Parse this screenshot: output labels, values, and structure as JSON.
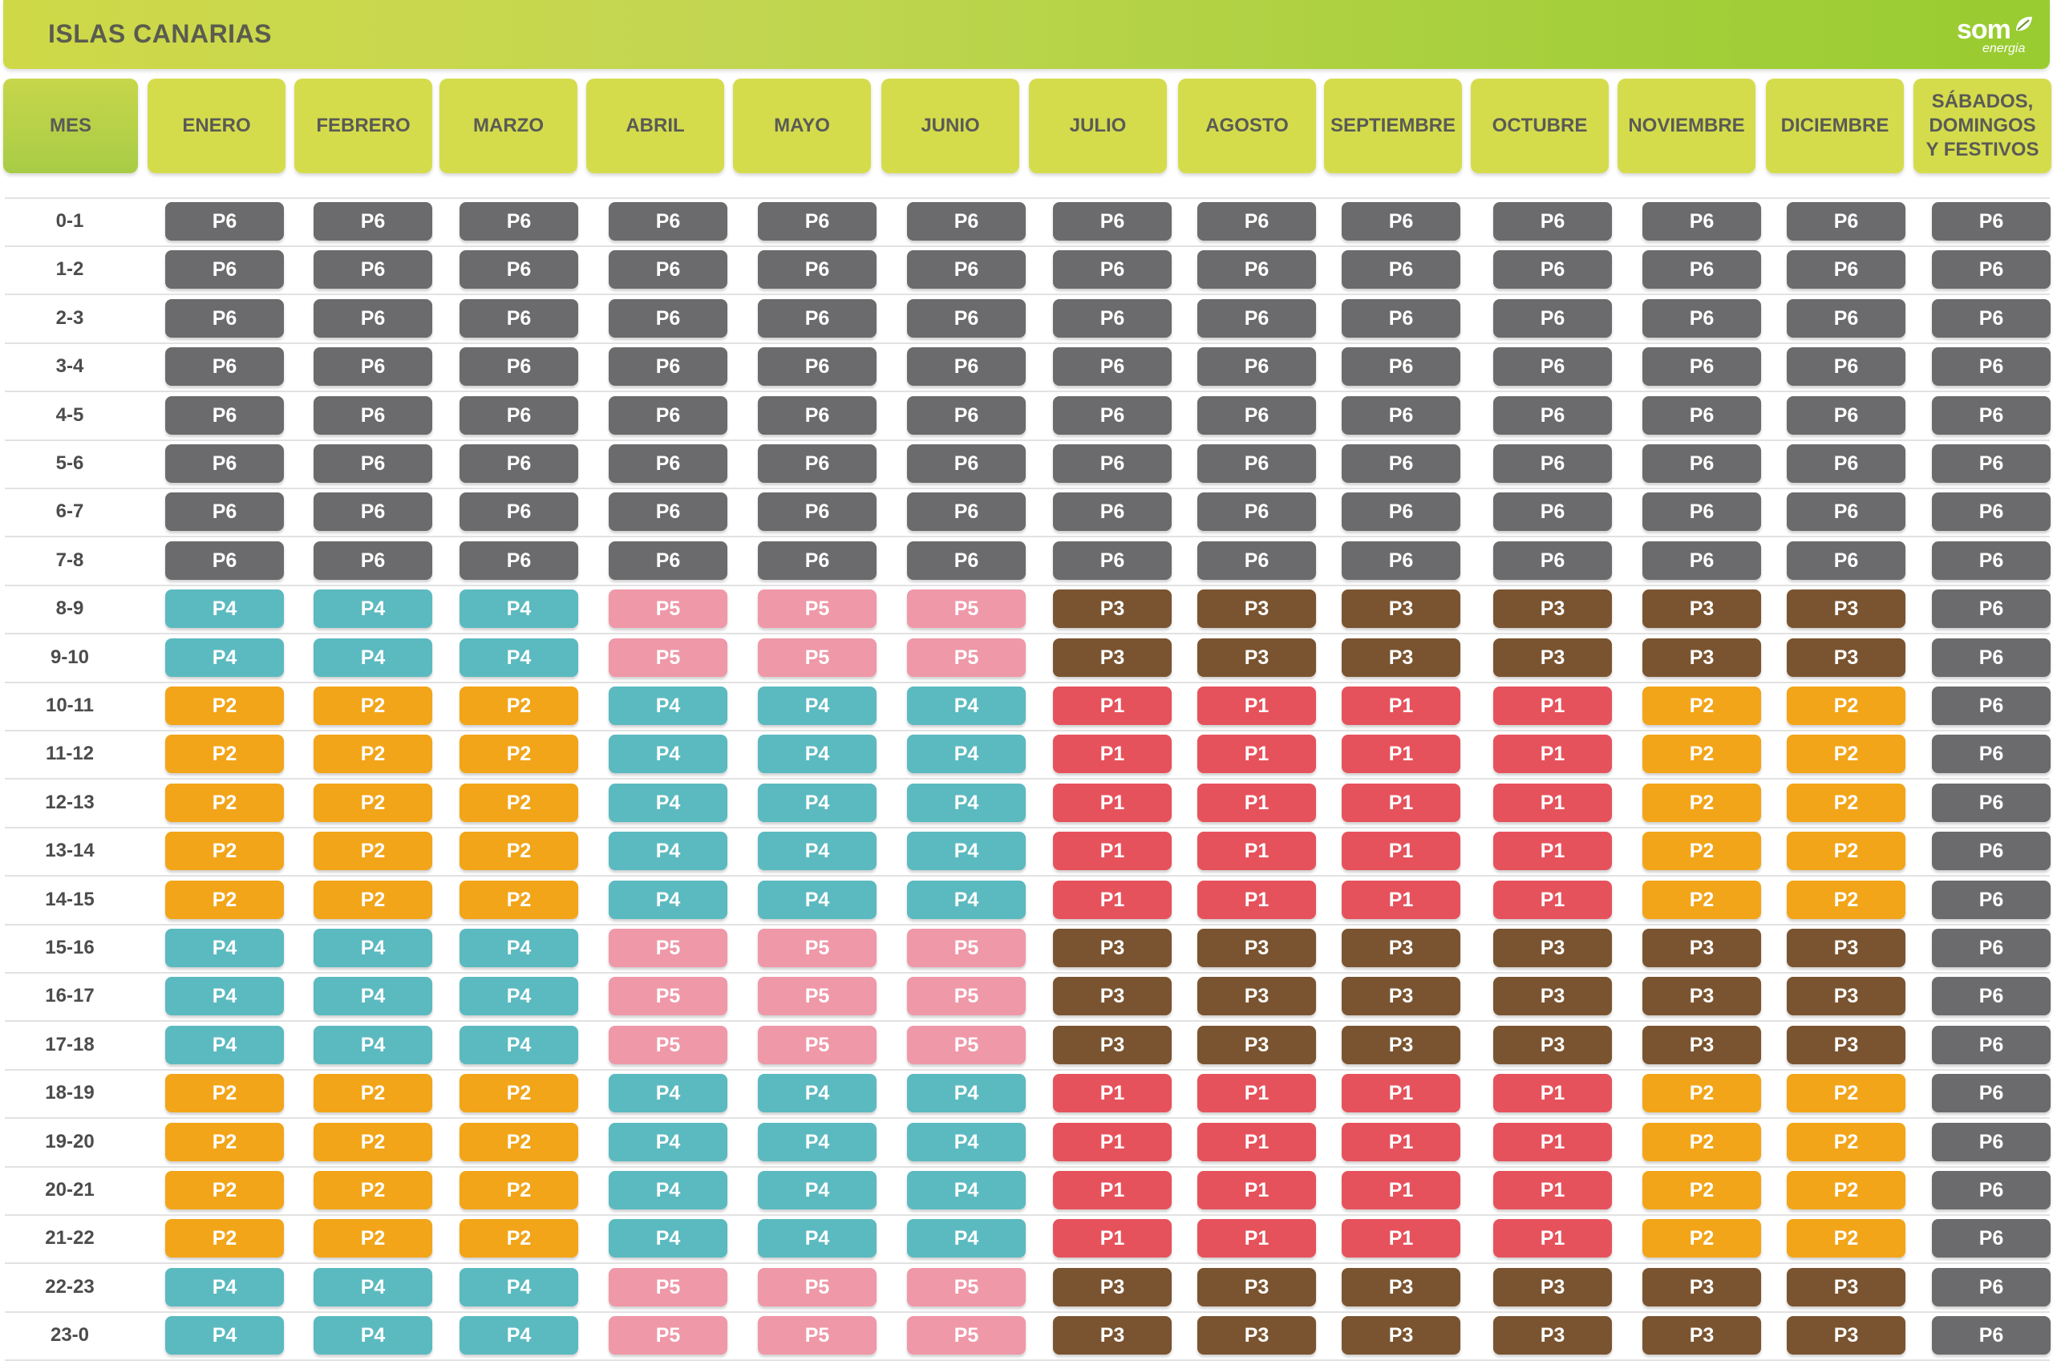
{
  "title": "ISLAS CANARIAS",
  "logo": {
    "word": "som",
    "sub": "energia"
  },
  "header_first": "MES",
  "columns": [
    "ENERO",
    "FEBRERO",
    "MARZO",
    "ABRIL",
    "MAYO",
    "JUNIO",
    "JULIO",
    "AGOSTO",
    "SEPTIEMBRE",
    "OCTUBRE",
    "NOVIEMBRE",
    "DICIEMBRE",
    "SÁBADOS,\nDOMINGOS\nY FESTIVOS"
  ],
  "period_colors": {
    "P1": "#e6525c",
    "P2": "#f2a519",
    "P3": "#7a5430",
    "P4": "#5bbac0",
    "P5": "#ef98a8",
    "P6": "#6b6b6d"
  },
  "rows": [
    {
      "hour": "0-1",
      "periods": [
        "P6",
        "P6",
        "P6",
        "P6",
        "P6",
        "P6",
        "P6",
        "P6",
        "P6",
        "P6",
        "P6",
        "P6",
        "P6"
      ]
    },
    {
      "hour": "1-2",
      "periods": [
        "P6",
        "P6",
        "P6",
        "P6",
        "P6",
        "P6",
        "P6",
        "P6",
        "P6",
        "P6",
        "P6",
        "P6",
        "P6"
      ]
    },
    {
      "hour": "2-3",
      "periods": [
        "P6",
        "P6",
        "P6",
        "P6",
        "P6",
        "P6",
        "P6",
        "P6",
        "P6",
        "P6",
        "P6",
        "P6",
        "P6"
      ]
    },
    {
      "hour": "3-4",
      "periods": [
        "P6",
        "P6",
        "P6",
        "P6",
        "P6",
        "P6",
        "P6",
        "P6",
        "P6",
        "P6",
        "P6",
        "P6",
        "P6"
      ]
    },
    {
      "hour": "4-5",
      "periods": [
        "P6",
        "P6",
        "P6",
        "P6",
        "P6",
        "P6",
        "P6",
        "P6",
        "P6",
        "P6",
        "P6",
        "P6",
        "P6"
      ]
    },
    {
      "hour": "5-6",
      "periods": [
        "P6",
        "P6",
        "P6",
        "P6",
        "P6",
        "P6",
        "P6",
        "P6",
        "P6",
        "P6",
        "P6",
        "P6",
        "P6"
      ]
    },
    {
      "hour": "6-7",
      "periods": [
        "P6",
        "P6",
        "P6",
        "P6",
        "P6",
        "P6",
        "P6",
        "P6",
        "P6",
        "P6",
        "P6",
        "P6",
        "P6"
      ]
    },
    {
      "hour": "7-8",
      "periods": [
        "P6",
        "P6",
        "P6",
        "P6",
        "P6",
        "P6",
        "P6",
        "P6",
        "P6",
        "P6",
        "P6",
        "P6",
        "P6"
      ]
    },
    {
      "hour": "8-9",
      "periods": [
        "P4",
        "P4",
        "P4",
        "P5",
        "P5",
        "P5",
        "P3",
        "P3",
        "P3",
        "P3",
        "P3",
        "P3",
        "P6"
      ]
    },
    {
      "hour": "9-10",
      "periods": [
        "P4",
        "P4",
        "P4",
        "P5",
        "P5",
        "P5",
        "P3",
        "P3",
        "P3",
        "P3",
        "P3",
        "P3",
        "P6"
      ]
    },
    {
      "hour": "10-11",
      "periods": [
        "P2",
        "P2",
        "P2",
        "P4",
        "P4",
        "P4",
        "P1",
        "P1",
        "P1",
        "P1",
        "P2",
        "P2",
        "P6"
      ]
    },
    {
      "hour": "11-12",
      "periods": [
        "P2",
        "P2",
        "P2",
        "P4",
        "P4",
        "P4",
        "P1",
        "P1",
        "P1",
        "P1",
        "P2",
        "P2",
        "P6"
      ]
    },
    {
      "hour": "12-13",
      "periods": [
        "P2",
        "P2",
        "P2",
        "P4",
        "P4",
        "P4",
        "P1",
        "P1",
        "P1",
        "P1",
        "P2",
        "P2",
        "P6"
      ]
    },
    {
      "hour": "13-14",
      "periods": [
        "P2",
        "P2",
        "P2",
        "P4",
        "P4",
        "P4",
        "P1",
        "P1",
        "P1",
        "P1",
        "P2",
        "P2",
        "P6"
      ]
    },
    {
      "hour": "14-15",
      "periods": [
        "P2",
        "P2",
        "P2",
        "P4",
        "P4",
        "P4",
        "P1",
        "P1",
        "P1",
        "P1",
        "P2",
        "P2",
        "P6"
      ]
    },
    {
      "hour": "15-16",
      "periods": [
        "P4",
        "P4",
        "P4",
        "P5",
        "P5",
        "P5",
        "P3",
        "P3",
        "P3",
        "P3",
        "P3",
        "P3",
        "P6"
      ]
    },
    {
      "hour": "16-17",
      "periods": [
        "P4",
        "P4",
        "P4",
        "P5",
        "P5",
        "P5",
        "P3",
        "P3",
        "P3",
        "P3",
        "P3",
        "P3",
        "P6"
      ]
    },
    {
      "hour": "17-18",
      "periods": [
        "P4",
        "P4",
        "P4",
        "P5",
        "P5",
        "P5",
        "P3",
        "P3",
        "P3",
        "P3",
        "P3",
        "P3",
        "P6"
      ]
    },
    {
      "hour": "18-19",
      "periods": [
        "P2",
        "P2",
        "P2",
        "P4",
        "P4",
        "P4",
        "P1",
        "P1",
        "P1",
        "P1",
        "P2",
        "P2",
        "P6"
      ]
    },
    {
      "hour": "19-20",
      "periods": [
        "P2",
        "P2",
        "P2",
        "P4",
        "P4",
        "P4",
        "P1",
        "P1",
        "P1",
        "P1",
        "P2",
        "P2",
        "P6"
      ]
    },
    {
      "hour": "20-21",
      "periods": [
        "P2",
        "P2",
        "P2",
        "P4",
        "P4",
        "P4",
        "P1",
        "P1",
        "P1",
        "P1",
        "P2",
        "P2",
        "P6"
      ]
    },
    {
      "hour": "21-22",
      "periods": [
        "P2",
        "P2",
        "P2",
        "P4",
        "P4",
        "P4",
        "P1",
        "P1",
        "P1",
        "P1",
        "P2",
        "P2",
        "P6"
      ]
    },
    {
      "hour": "22-23",
      "periods": [
        "P4",
        "P4",
        "P4",
        "P5",
        "P5",
        "P5",
        "P3",
        "P3",
        "P3",
        "P3",
        "P3",
        "P3",
        "P6"
      ]
    },
    {
      "hour": "23-0",
      "periods": [
        "P4",
        "P4",
        "P4",
        "P5",
        "P5",
        "P5",
        "P3",
        "P3",
        "P3",
        "P3",
        "P3",
        "P3",
        "P6"
      ]
    }
  ]
}
